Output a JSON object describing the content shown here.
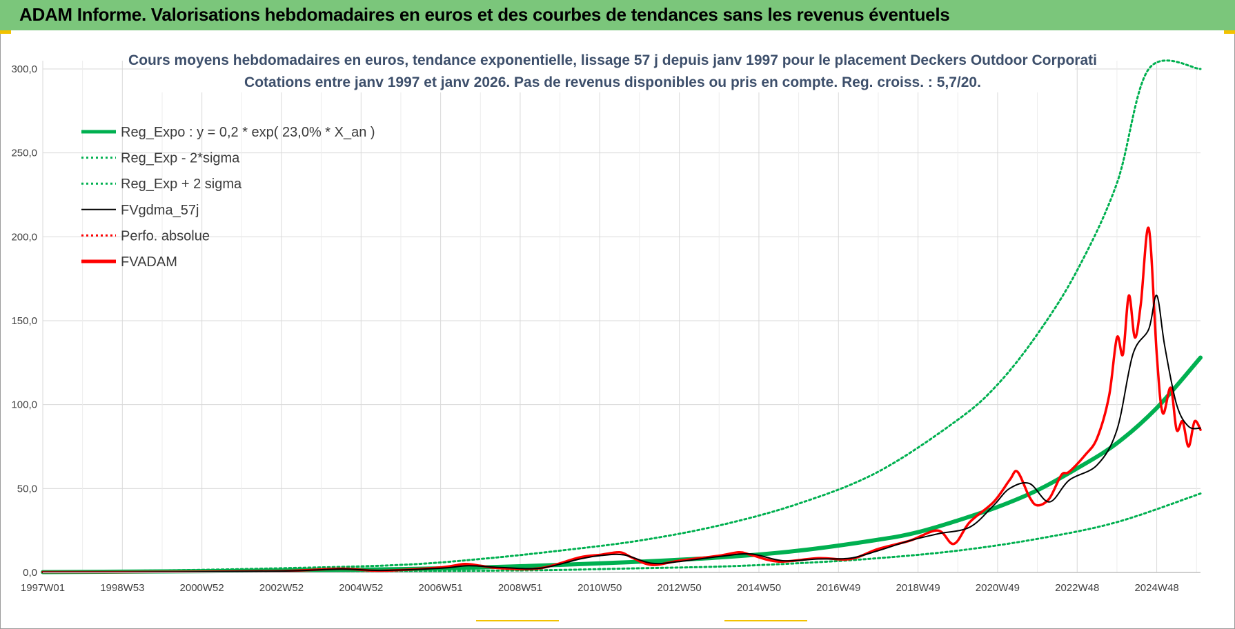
{
  "banner": {
    "title": "ADAM Informe. Valorisations hebdomadaires en euros et des courbes de tendances sans les revenus éventuels",
    "background_color": "#7bc67b"
  },
  "chart_data": {
    "type": "line",
    "title": "Cours moyens hebdomadaires en euros, tendance exponentielle, lissage 57 j depuis janv 1997 pour le placement Deckers Outdoor Corporati",
    "subtitle": "Cotations entre janv 1997 et janv 2026. Pas de revenus disponibles ou pris en compte. Reg. croiss. : 5,7/20.",
    "xlabel": "",
    "ylabel": "",
    "xlim": [
      1997.0,
      2026.1
    ],
    "ylim": [
      0,
      300
    ],
    "y_ticks": [
      0,
      50,
      100,
      150,
      200,
      250,
      300
    ],
    "y_tick_labels": [
      "0,0",
      "50,0",
      "100,0",
      "150,0",
      "200,0",
      "250,0",
      "300,0"
    ],
    "x_ticks": [
      1997.0,
      1999.0,
      2001.0,
      2003.0,
      2005.0,
      2007.0,
      2009.0,
      2011.0,
      2013.0,
      2015.0,
      2017.0,
      2019.0,
      2021.0,
      2023.0,
      2025.0
    ],
    "x_tick_labels": [
      "1997W01",
      "1998W53",
      "2000W52",
      "2002W52",
      "2004W52",
      "2006W51",
      "2008W51",
      "2010W50",
      "2012W50",
      "2014W50",
      "2016W49",
      "2018W49",
      "2020W49",
      "2022W48",
      "2024W48"
    ],
    "grid": true,
    "legend_position": "top-left",
    "series": [
      {
        "name": "Reg_Expo : y = 0,2 * exp( 23,0% *  X_an )",
        "color": "#00b050",
        "style": "solid",
        "width": "thick",
        "x": [
          1997,
          2000,
          2003,
          2006,
          2008,
          2010,
          2012,
          2014,
          2016,
          2018,
          2019,
          2020,
          2021,
          2022,
          2023,
          2024,
          2025,
          2026.1
        ],
        "values": [
          0.2,
          0.6,
          1.1,
          2.0,
          3.0,
          4.5,
          6.4,
          8.9,
          13.0,
          19.5,
          24.0,
          31.0,
          39.0,
          49.0,
          62.0,
          77.0,
          98.0,
          128.0
        ]
      },
      {
        "name": "Reg_Exp - 2*sigma",
        "color": "#00b050",
        "style": "dotted",
        "width": "normal",
        "x": [
          1997,
          2000,
          2003,
          2006,
          2008,
          2010,
          2012,
          2014,
          2016,
          2018,
          2020,
          2022,
          2024,
          2026.1
        ],
        "values": [
          0.05,
          0.2,
          0.4,
          0.6,
          1.0,
          1.5,
          2.5,
          3.5,
          5.5,
          8.5,
          13.0,
          20.0,
          30.0,
          47.0
        ]
      },
      {
        "name": "Reg_Exp + 2 sigma",
        "color": "#00b050",
        "style": "dotted",
        "width": "normal",
        "x": [
          1997,
          2000,
          2003,
          2006,
          2008,
          2010,
          2012,
          2014,
          2016,
          2018,
          2020,
          2021,
          2022,
          2023,
          2024,
          2024.8,
          2026.1
        ],
        "values": [
          0.5,
          1.2,
          2.5,
          4.5,
          8.0,
          13.0,
          19.0,
          28.0,
          41.0,
          60.0,
          91.0,
          112.0,
          142.0,
          180.0,
          232.0,
          300.0,
          300.0
        ]
      },
      {
        "name": "FVgdma_57j",
        "color": "#000000",
        "style": "solid",
        "width": "normal",
        "x": [
          1997,
          2000,
          2003,
          2004.5,
          2005.5,
          2007.0,
          2007.7,
          2008.5,
          2009.5,
          2010.5,
          2011.0,
          2011.6,
          2012.3,
          2013.0,
          2014.0,
          2014.8,
          2015.6,
          2016.5,
          2017.3,
          2018.0,
          2018.8,
          2019.5,
          2020.3,
          2020.9,
          2021.3,
          2021.8,
          2022.3,
          2022.8,
          2023.5,
          2024.0,
          2024.4,
          2024.8,
          2025.0,
          2025.2,
          2025.5,
          2025.8,
          2026.1
        ],
        "values": [
          0.2,
          0.3,
          0.8,
          2.0,
          1.2,
          2.5,
          4.0,
          3.0,
          2.5,
          8.0,
          10.0,
          10.5,
          5.5,
          6.5,
          9.5,
          11.0,
          7.0,
          8.0,
          8.5,
          13.0,
          19.0,
          23.0,
          27.0,
          40.0,
          50.0,
          53.0,
          42.0,
          55.0,
          64.0,
          85.0,
          130.0,
          145.0,
          165.0,
          135.0,
          100.0,
          87.0,
          86.0
        ]
      },
      {
        "name": "Perfo. absolue",
        "color": "#ff0000",
        "style": "dotted",
        "width": "normal",
        "x": [],
        "values": []
      },
      {
        "name": "FVADAM",
        "color": "#ff0000",
        "style": "solid",
        "width": "thick",
        "x": [
          1997,
          2000,
          2003,
          2004.5,
          2005.5,
          2007.0,
          2007.6,
          2008.0,
          2008.5,
          2009.5,
          2010.5,
          2011.0,
          2011.5,
          2011.8,
          2012.3,
          2013.0,
          2014.0,
          2014.5,
          2014.8,
          2015.5,
          2016.5,
          2017.3,
          2018.0,
          2018.8,
          2019.5,
          2019.9,
          2020.3,
          2020.9,
          2021.3,
          2021.5,
          2021.8,
          2022.0,
          2022.3,
          2022.6,
          2022.8,
          2023.2,
          2023.5,
          2023.8,
          2024.0,
          2024.15,
          2024.3,
          2024.45,
          2024.6,
          2024.8,
          2025.0,
          2025.15,
          2025.35,
          2025.5,
          2025.65,
          2025.8,
          2025.95,
          2026.1
        ],
        "values": [
          0.2,
          0.3,
          0.8,
          2.2,
          1.0,
          3.0,
          5.0,
          4.0,
          2.5,
          2.5,
          9.0,
          10.5,
          12.0,
          9.0,
          4.5,
          7.0,
          10.0,
          12.0,
          10.5,
          6.5,
          8.5,
          8.0,
          14.0,
          19.0,
          25.0,
          17.0,
          30.0,
          42.0,
          55.0,
          60.0,
          45.0,
          40.0,
          44.0,
          58.0,
          60.0,
          70.0,
          80.0,
          105.0,
          140.0,
          130.0,
          165.0,
          140.0,
          160.0,
          205.0,
          130.0,
          95.0,
          110.0,
          85.0,
          90.0,
          75.0,
          90.0,
          85.0
        ]
      }
    ]
  }
}
